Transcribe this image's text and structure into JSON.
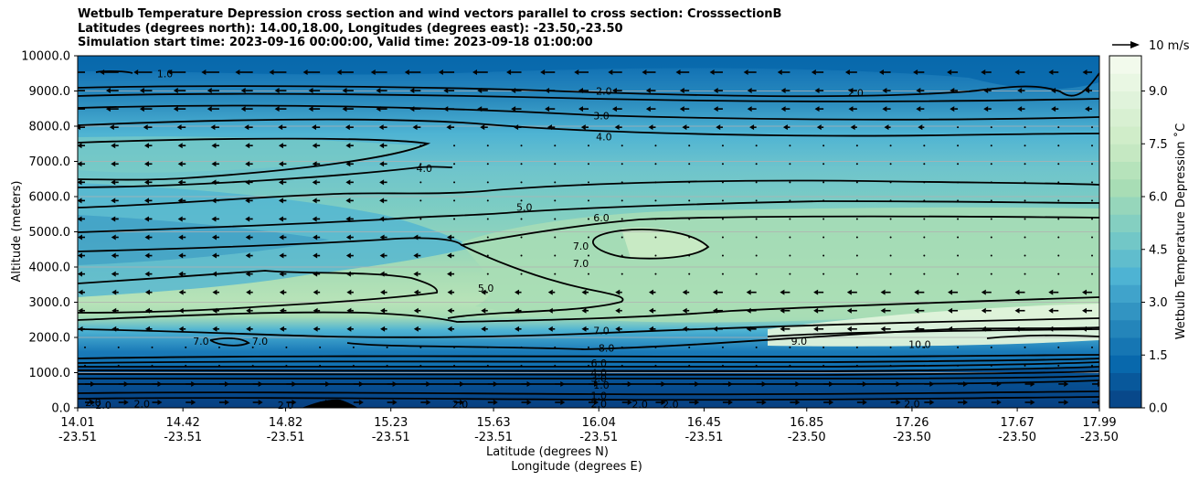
{
  "title_lines": [
    "Wetbulb Temperature Depression cross section and wind vectors parallel to cross section: CrosssectionB",
    "Latitudes (degrees north): 14.00,18.00, Longitudes (degrees east): -23.50,-23.50",
    "Simulation start time: 2023-09-16 00:00:00, Valid time: 2023-09-18 01:00:00"
  ],
  "chart_data": {
    "type": "heatmap",
    "ylabel": "Altitude (meters)",
    "xlabel_line1": "Latitude (degrees N)",
    "xlabel_line2": "Longitude (degrees E)",
    "ylim": [
      0,
      10000
    ],
    "y_ticks": [
      "0.0",
      "1000.0",
      "2000.0",
      "3000.0",
      "4000.0",
      "5000.0",
      "6000.0",
      "7000.0",
      "8000.0",
      "9000.0",
      "10000.0"
    ],
    "x_ticks_lat": [
      "14.01",
      "14.42",
      "14.82",
      "15.23",
      "15.63",
      "16.04",
      "16.45",
      "16.85",
      "17.26",
      "17.67",
      "17.99"
    ],
    "x_ticks_lon": [
      "-23.51",
      "-23.51",
      "-23.51",
      "-23.51",
      "-23.51",
      "-23.51",
      "-23.51",
      "-23.50",
      "-23.50",
      "-23.50",
      "-23.50"
    ],
    "grid": "horizontal",
    "colorbar": {
      "label": "Wetbulb Temperature Depression ˚C",
      "range": [
        0,
        10
      ],
      "ticks": [
        "0.0",
        "1.5",
        "3.0",
        "4.5",
        "6.0",
        "7.5",
        "9.0"
      ],
      "colormap": [
        "#084081",
        "#0868ac",
        "#2b8cbe",
        "#4eb3d3",
        "#7bccc4",
        "#a8ddb5",
        "#ccebc5",
        "#e0f3db",
        "#f7fcf0"
      ]
    },
    "quiver_key": "10 m/s",
    "contour_labels": [
      {
        "text": "1.0",
        "lat": 14.35,
        "alt": 9500
      },
      {
        "text": "2.0",
        "lat": 16.06,
        "alt": 9000
      },
      {
        "text": "2.0",
        "lat": 17.04,
        "alt": 8950
      },
      {
        "text": "3.0",
        "lat": 16.05,
        "alt": 8300
      },
      {
        "text": "4.0",
        "lat": 16.06,
        "alt": 7700
      },
      {
        "text": "4.0",
        "lat": 15.36,
        "alt": 6800
      },
      {
        "text": "5.0",
        "lat": 15.75,
        "alt": 5700
      },
      {
        "text": "6.0",
        "lat": 16.05,
        "alt": 5400
      },
      {
        "text": "7.0",
        "lat": 15.97,
        "alt": 4600
      },
      {
        "text": "7.0",
        "lat": 15.97,
        "alt": 4100
      },
      {
        "text": "5.0",
        "lat": 15.6,
        "alt": 3400
      },
      {
        "text": "7.0",
        "lat": 14.49,
        "alt": 1900
      },
      {
        "text": "7.0",
        "lat": 14.72,
        "alt": 1900
      },
      {
        "text": "7.0",
        "lat": 16.05,
        "alt": 2200
      },
      {
        "text": "8.0",
        "lat": 16.07,
        "alt": 1700
      },
      {
        "text": "9.0",
        "lat": 16.82,
        "alt": 1900
      },
      {
        "text": "10.0",
        "lat": 17.29,
        "alt": 1800
      },
      {
        "text": "6.0",
        "lat": 16.04,
        "alt": 1270
      },
      {
        "text": "4.0",
        "lat": 16.04,
        "alt": 1000
      },
      {
        "text": "3.0",
        "lat": 16.04,
        "alt": 850
      },
      {
        "text": "1.0",
        "lat": 16.05,
        "alt": 650
      },
      {
        "text": "1.0",
        "lat": 16.04,
        "alt": 350
      },
      {
        "text": "2.0",
        "lat": 16.04,
        "alt": 120
      },
      {
        "text": "2.0",
        "lat": 14.07,
        "alt": 150
      },
      {
        "text": "2.0",
        "lat": 14.11,
        "alt": 80
      },
      {
        "text": "2.0",
        "lat": 14.26,
        "alt": 120
      },
      {
        "text": "2.0",
        "lat": 14.82,
        "alt": 80
      },
      {
        "text": "2.0",
        "lat": 15.5,
        "alt": 100
      },
      {
        "text": "2.0",
        "lat": 16.2,
        "alt": 100
      },
      {
        "text": "2.0",
        "lat": 16.32,
        "alt": 100
      },
      {
        "text": "2.0",
        "lat": 17.26,
        "alt": 120
      }
    ]
  }
}
